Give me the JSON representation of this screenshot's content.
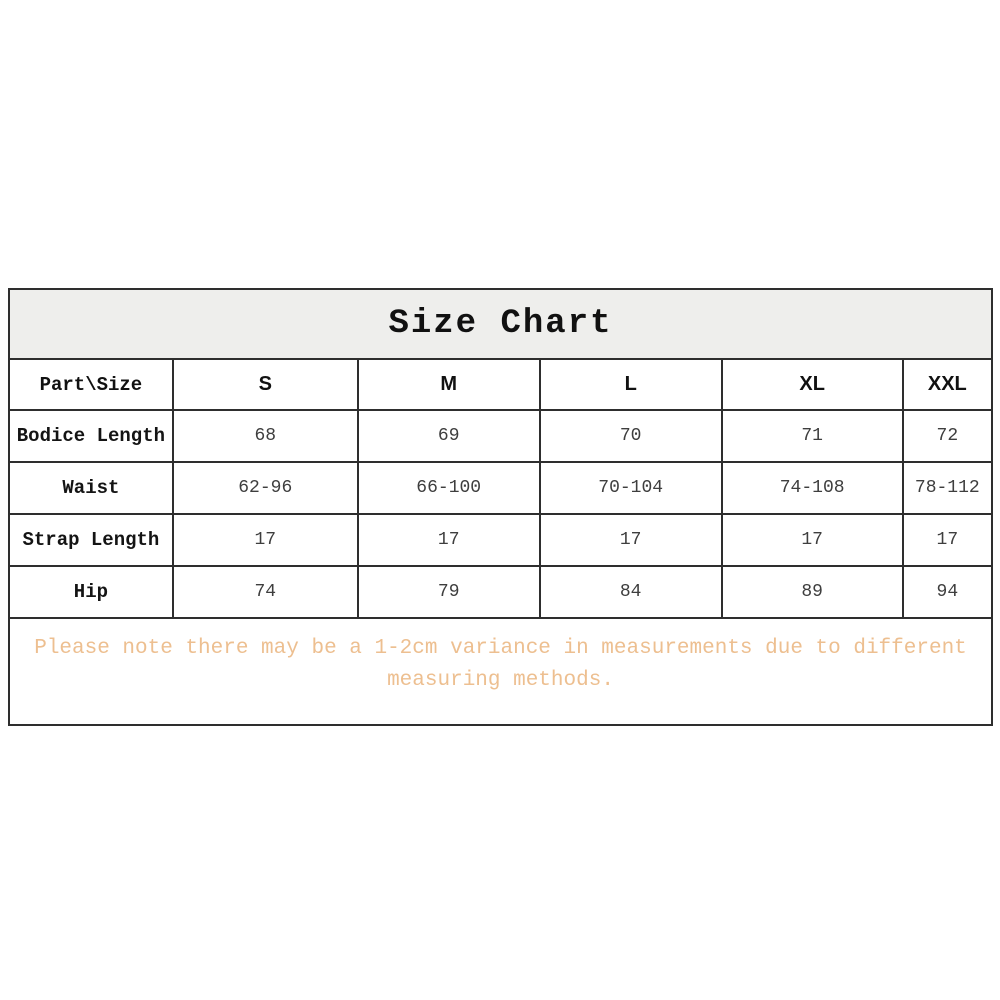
{
  "page": {
    "background": "#ffffff"
  },
  "colors": {
    "table_border": "#2e2e2e",
    "title_background": "#eeeeec",
    "header_text": "#111111",
    "label_text": "#141414",
    "value_text": "#3e3e3e",
    "note_text": "#edbf90"
  },
  "chart_data": {
    "type": "table",
    "title": "Size Chart",
    "columns": [
      "Part\\Size",
      "S",
      "M",
      "L",
      "XL",
      "XXL"
    ],
    "rows": [
      {
        "label": "Bodice Length",
        "values": [
          "68",
          "69",
          "70",
          "71",
          "72"
        ]
      },
      {
        "label": "Waist",
        "values": [
          "62-96",
          "66-100",
          "70-104",
          "74-108",
          "78-112"
        ]
      },
      {
        "label": "Strap Length",
        "values": [
          "17",
          "17",
          "17",
          "17",
          "17"
        ]
      },
      {
        "label": "Hip",
        "values": [
          "74",
          "79",
          "84",
          "89",
          "94"
        ]
      }
    ],
    "note": "Please note there may be a 1-2cm variance in measurements due to different measuring methods."
  }
}
